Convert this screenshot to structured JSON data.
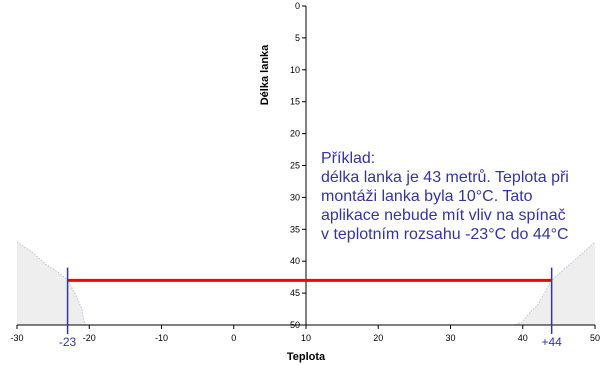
{
  "chart_data": {
    "type": "area",
    "xlabel": "Teplota",
    "ylabel": "Délka lanka",
    "xlim": [
      -30,
      50
    ],
    "ylim": [
      0,
      50
    ],
    "y_inverted": true,
    "x_ticks": [
      -30,
      -20,
      -10,
      0,
      10,
      20,
      30,
      40,
      50
    ],
    "y_ticks": [
      0,
      5,
      10,
      15,
      20,
      25,
      30,
      35,
      40,
      45,
      50
    ],
    "grid": false,
    "colors": {
      "area_fill": "#eeeeee",
      "area_stroke": "#b8c4da",
      "limit_line": "#ff0000",
      "marker": "#3333aa",
      "note": "#3333aa",
      "axis": "#000000"
    },
    "series": [
      {
        "region": "left",
        "x": [
          -30,
          -28,
          -26,
          -24,
          -23,
          -22,
          -21,
          -20.8,
          -20.5
        ],
        "y": [
          37,
          38.5,
          40.5,
          42,
          43,
          45,
          47.5,
          49,
          50
        ]
      },
      {
        "region": "right",
        "x": [
          39,
          40,
          41,
          42,
          44,
          46,
          48,
          50
        ],
        "y": [
          50,
          49.5,
          48,
          47,
          43,
          41,
          39,
          37
        ]
      }
    ],
    "limit_line": {
      "y": 43,
      "x_start": -23,
      "x_end": 44
    },
    "markers": [
      {
        "x": -23,
        "label": "-23"
      },
      {
        "x": 44,
        "label": "+44"
      }
    ],
    "annotation": {
      "lines": [
        "Příklad:",
        "délka lanka je 43 metrů. Teplota při",
        "montáži lanka byla 10°C. Tato",
        "aplikace nebude mít vliv na spínač",
        "v teplotním rozsahu -23°C do 44°C"
      ]
    }
  }
}
